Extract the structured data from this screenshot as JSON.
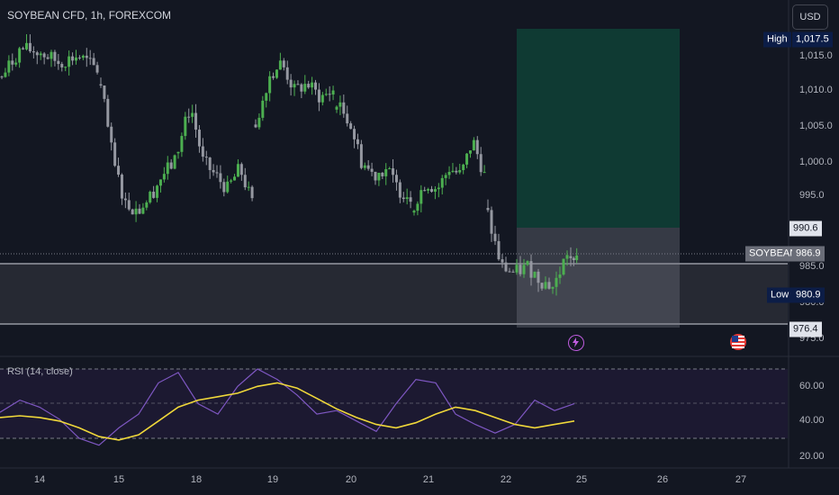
{
  "header": {
    "symbol_title": "SOYBEAN CFD, 1h, FOREXCOM",
    "currency_button": "USD"
  },
  "price_axis": {
    "ticks": [
      "1,015.0",
      "1,010.0",
      "1,005.0",
      "1,000.0",
      "995.0",
      "985.0",
      "980.0",
      "975.0"
    ]
  },
  "price_tags": {
    "high_label": "High",
    "high_value": "1,017.5",
    "level_upper": "990.6",
    "symbol_label": "SOYBEAN",
    "last_price": "986.9",
    "low_label": "Low",
    "low_value": "980.9",
    "level_lower": "976.4"
  },
  "rsi_panel": {
    "title": "RSI (14, close)",
    "ticks": [
      "60.00",
      "40.00",
      "20.00"
    ]
  },
  "time_axis": {
    "labels": [
      "14",
      "15",
      "18",
      "19",
      "20",
      "21",
      "22",
      "25",
      "26",
      "27"
    ]
  },
  "colors": {
    "background": "#131722",
    "up_candle": "#4caf50",
    "down_candle": "#9598a1",
    "target_zone": "#0f3a33",
    "rsi_line": "#7e57c2",
    "rsi_ma": "#f0d83a",
    "rsi_band": "#7e57c2",
    "tag_dark": "#0c1d47"
  },
  "icons": [
    "lightning-event-icon",
    "us-flag-event-icon"
  ],
  "chart_data": {
    "type": "candlestick",
    "description_units": "price in USD, time in 1h bars",
    "y_axis_range": [
      973,
      1021
    ],
    "rsi_range": [
      15,
      75
    ],
    "high": 1017.5,
    "low": 980.9,
    "last": 986.9,
    "zones": {
      "target": [
        990.6,
        1017.5
      ],
      "entry": [
        976.4,
        990.6
      ],
      "support_band": [
        976.4,
        985.2
      ]
    },
    "segments": [
      {
        "label": "14",
        "anchors": [
          1012,
          1016,
          1015.5,
          1014,
          1015,
          1013
        ]
      },
      {
        "label": "15",
        "anchors": [
          1011,
          1000,
          994,
          993,
          995,
          998,
          1000
        ]
      },
      {
        "label": "18",
        "anchors": [
          1002,
          1008,
          1000,
          998,
          996,
          999,
          994
        ]
      },
      {
        "label": "19",
        "anchors": [
          1005,
          1012,
          1014,
          1010,
          1011,
          1009,
          1010
        ]
      },
      {
        "label": "20",
        "anchors": [
          1008,
          1006,
          1000,
          998,
          999,
          996,
          995
        ]
      },
      {
        "label": "21",
        "anchors": [
          994,
          997,
          996,
          999,
          998,
          1003,
          998
        ]
      },
      {
        "label": "22",
        "anchors": [
          992,
          985,
          984,
          985,
          983,
          982,
          987
        ]
      },
      {
        "label": "25",
        "anchors": [
          986,
          987
        ]
      }
    ],
    "rsi": [
      45,
      52,
      48,
      41,
      30,
      26,
      36,
      44,
      62,
      68,
      50,
      44,
      60,
      70,
      64,
      55,
      44,
      46,
      40,
      34,
      50,
      64,
      62,
      44,
      38,
      33,
      38,
      52,
      46,
      50
    ],
    "rsi_ma": [
      42,
      43,
      42,
      40,
      36,
      31,
      29,
      32,
      40,
      48,
      52,
      54,
      56,
      60,
      62,
      59,
      53,
      47,
      42,
      38,
      36,
      39,
      44,
      48,
      46,
      42,
      38,
      36,
      38,
      40
    ]
  }
}
